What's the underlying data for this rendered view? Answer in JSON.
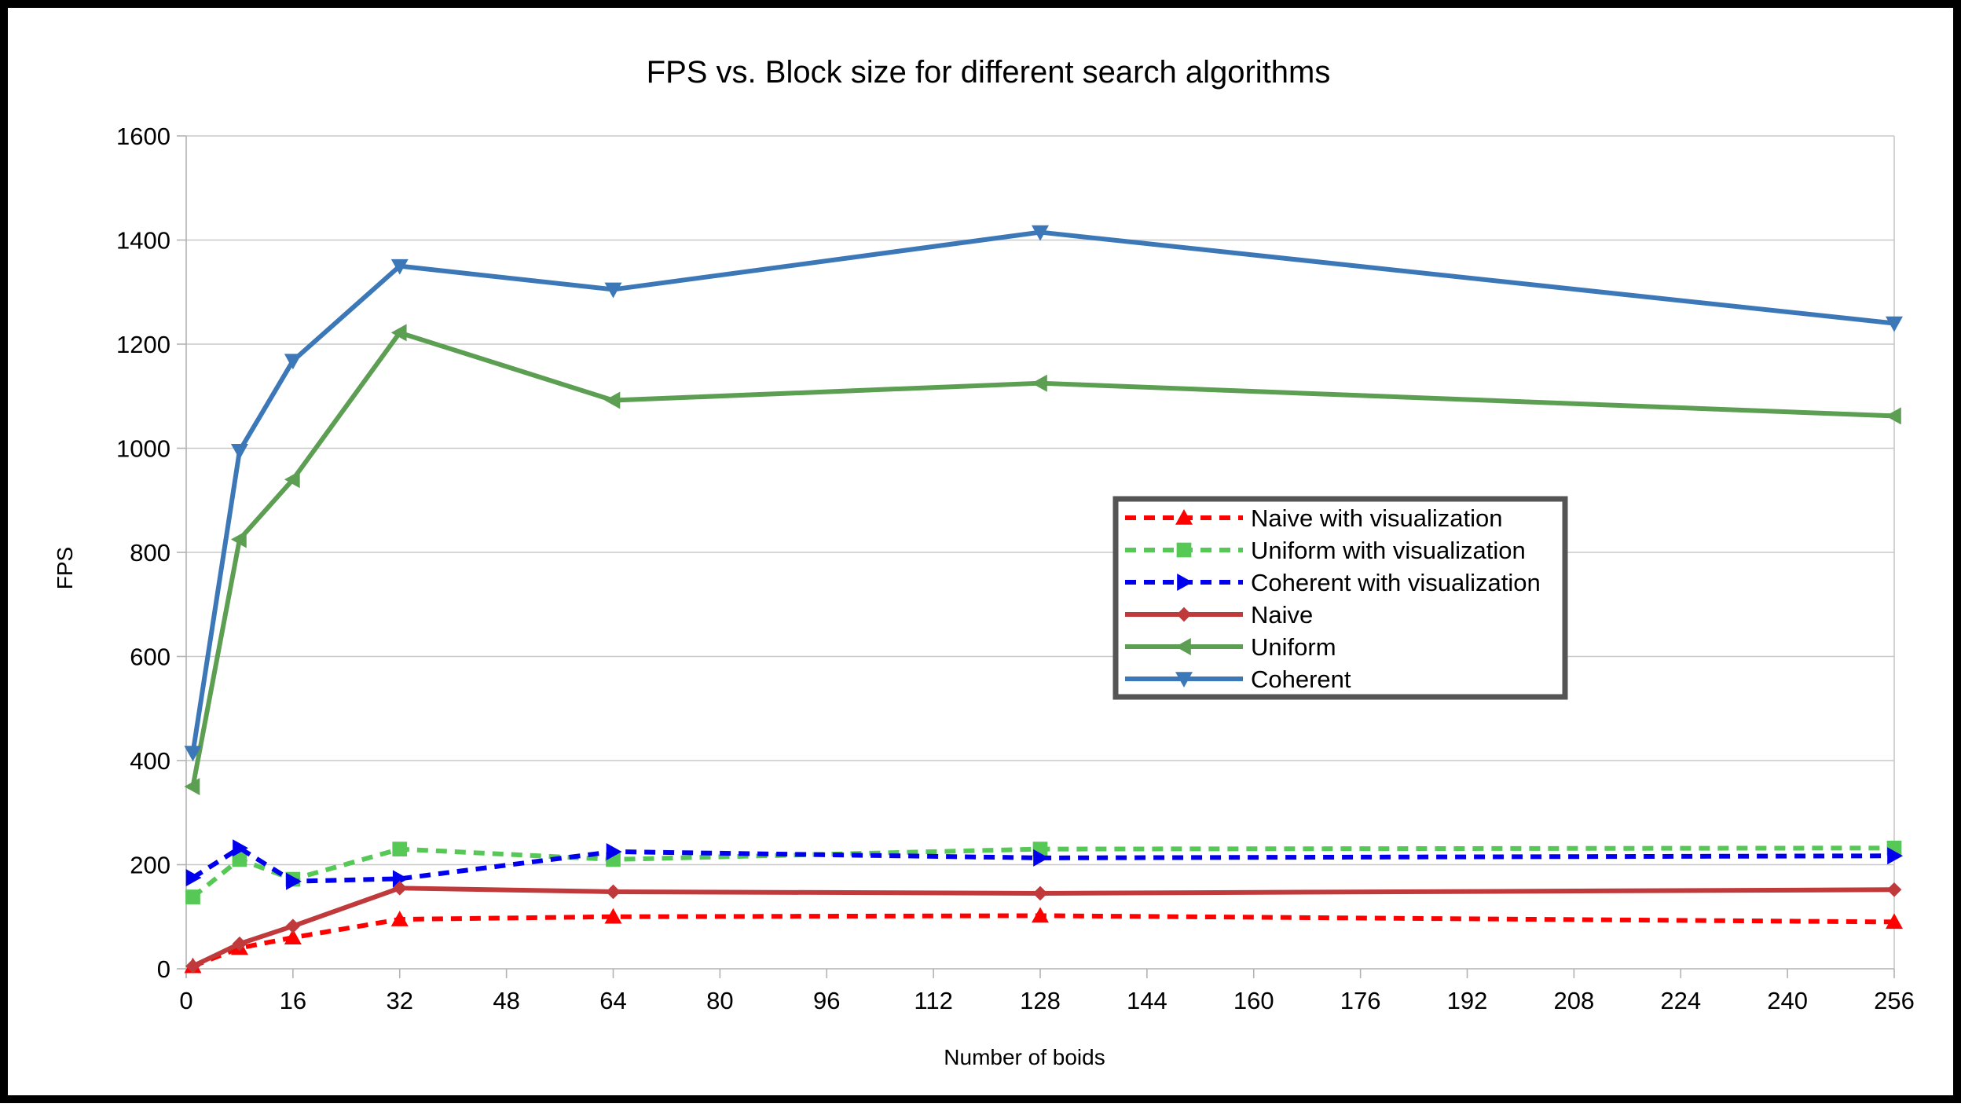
{
  "chart_data": {
    "type": "line",
    "title": "FPS vs. Block size for different search algorithms",
    "xlabel": "Number of boids",
    "ylabel": "FPS",
    "xlim": [
      0,
      256
    ],
    "ylim": [
      0,
      1600
    ],
    "x_ticks": [
      0,
      16,
      32,
      48,
      64,
      80,
      96,
      112,
      128,
      144,
      160,
      176,
      192,
      208,
      224,
      240,
      256
    ],
    "y_ticks": [
      0,
      200,
      400,
      600,
      800,
      1000,
      1200,
      1400,
      1600
    ],
    "grid": "horizontal",
    "legend_position": "center-right",
    "x": [
      1,
      8,
      16,
      32,
      64,
      128,
      256
    ],
    "series": [
      {
        "name": "Naive with visualization",
        "values": [
          5,
          40,
          60,
          95,
          100,
          102,
          90
        ],
        "color": "#ff0000",
        "dashed": true,
        "marker": "triangle-up"
      },
      {
        "name": "Uniform with visualization",
        "values": [
          138,
          210,
          172,
          230,
          210,
          230,
          232
        ],
        "color": "#55c855",
        "dashed": true,
        "marker": "square"
      },
      {
        "name": "Coherent with visualization",
        "values": [
          175,
          232,
          168,
          173,
          225,
          213,
          217
        ],
        "color": "#0000ee",
        "dashed": true,
        "marker": "triangle-right"
      },
      {
        "name": "Naive",
        "values": [
          5,
          48,
          82,
          155,
          148,
          145,
          152
        ],
        "color": "#c0393b",
        "dashed": false,
        "marker": "diamond"
      },
      {
        "name": "Uniform",
        "values": [
          350,
          825,
          940,
          1222,
          1092,
          1125,
          1062
        ],
        "color": "#5c9e52",
        "dashed": false,
        "marker": "triangle-left"
      },
      {
        "name": "Coherent",
        "values": [
          415,
          995,
          1168,
          1350,
          1305,
          1415,
          1240
        ],
        "color": "#3c78b8",
        "dashed": false,
        "marker": "triangle-down"
      }
    ]
  }
}
